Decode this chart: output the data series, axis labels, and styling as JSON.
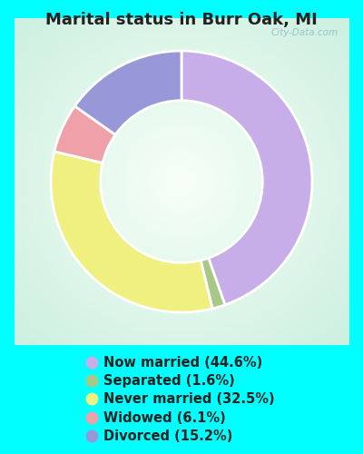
{
  "title": "Marital status in Burr Oak, MI",
  "slices": [
    44.6,
    1.6,
    32.5,
    6.1,
    15.2
  ],
  "labels": [
    "Now married (44.6%)",
    "Separated (1.6%)",
    "Never married (32.5%)",
    "Widowed (6.1%)",
    "Divorced (15.2%)"
  ],
  "colors": [
    "#c8aee8",
    "#a8c888",
    "#f0f080",
    "#f0a0a8",
    "#9898d8"
  ],
  "bg_color": "#00ffff",
  "chart_panel_color": "#e8f8ee",
  "title_fontsize": 13,
  "legend_fontsize": 10.5,
  "title_color": "#222222",
  "legend_text_color": "#222222",
  "watermark": "City-Data.com",
  "donut_width": 0.38
}
